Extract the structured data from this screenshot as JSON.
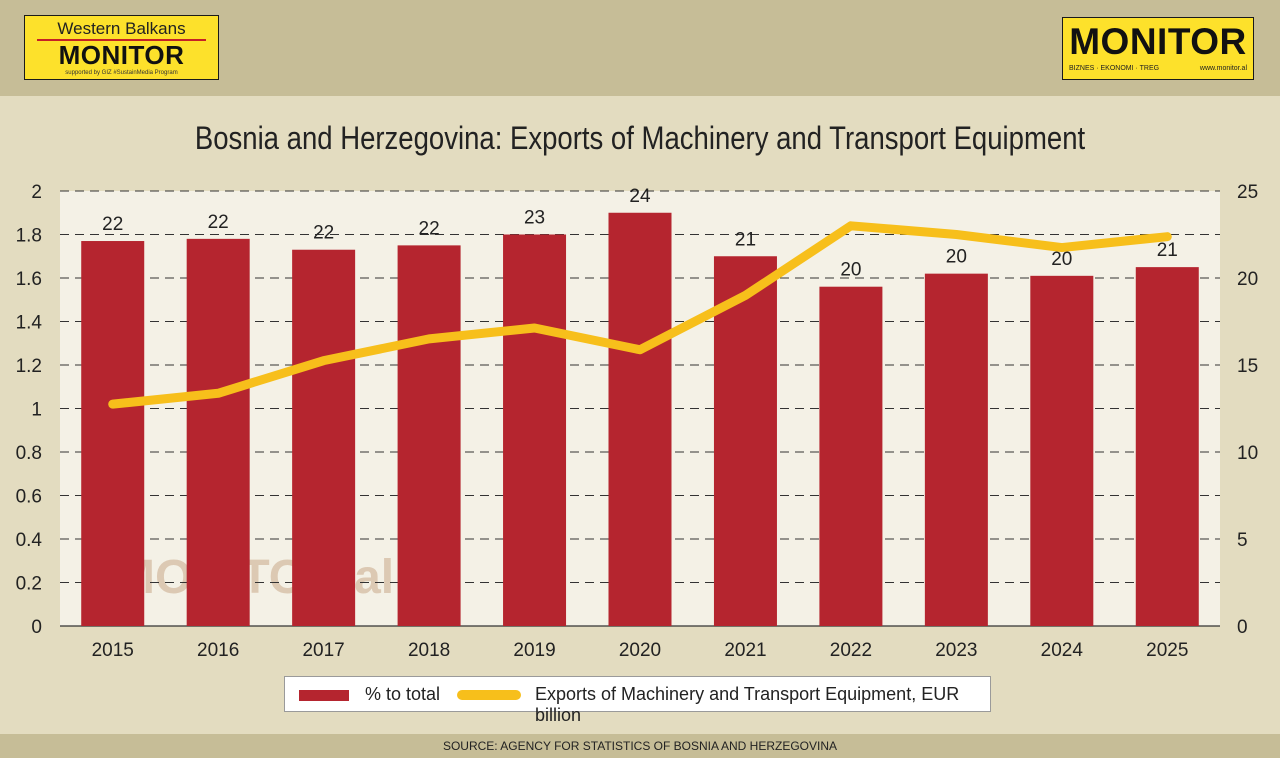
{
  "branding": {
    "left_logo": {
      "line1": "Western Balkans",
      "line2": "MONITOR",
      "line3": "supported by GIZ #SustainMedia Program"
    },
    "right_logo": {
      "name": "MONITOR",
      "tagline": "BIZNES · EKONOMI · TREG",
      "website": "www.monitor.al"
    },
    "watermark": "MONITOR.al"
  },
  "footer": {
    "source": "SOURCE: AGENCY FOR STATISTICS OF BOSNIA AND HERZEGOVINA"
  },
  "colors": {
    "bar": "#b5252f",
    "line": "#f7bf1b",
    "plot_bg": "#f4f1e6",
    "page_bg": "#e3dcc0"
  },
  "chart_data": {
    "type": "bar",
    "title": "Bosnia and Herzegovina: Exports of Machinery and Transport Equipment",
    "categories": [
      "2015",
      "2016",
      "2017",
      "2018",
      "2019",
      "2020",
      "2021",
      "2022",
      "2023",
      "2024",
      "2025"
    ],
    "series": [
      {
        "name": "% to total",
        "type": "bar",
        "axis": "right",
        "values": [
          22,
          22,
          22,
          22,
          23,
          24,
          21,
          20,
          20,
          20,
          21
        ],
        "bar_values_on_left_scale": [
          1.77,
          1.78,
          1.73,
          1.75,
          1.8,
          1.9,
          1.7,
          1.56,
          1.62,
          1.61,
          1.65
        ],
        "labels": [
          "22",
          "22",
          "22",
          "22",
          "23",
          "24",
          "21",
          "20",
          "20",
          "20",
          "21"
        ]
      },
      {
        "name": "Exports of Machinery and Transport Equipment, EUR billion",
        "type": "line",
        "axis": "left",
        "values": [
          1.02,
          1.07,
          1.22,
          1.32,
          1.37,
          1.27,
          1.52,
          1.84,
          1.8,
          1.74,
          1.79
        ]
      }
    ],
    "y_left": {
      "min": 0,
      "max": 2,
      "ticks": [
        "0",
        "0.2",
        "0.4",
        "0.6",
        "0.8",
        "1",
        "1.2",
        "1.4",
        "1.6",
        "1.8",
        "2"
      ]
    },
    "y_right": {
      "min": 0,
      "max": 25,
      "ticks": [
        "0",
        "5",
        "10",
        "15",
        "20",
        "25"
      ]
    },
    "grid": true,
    "legend_position": "bottom"
  }
}
